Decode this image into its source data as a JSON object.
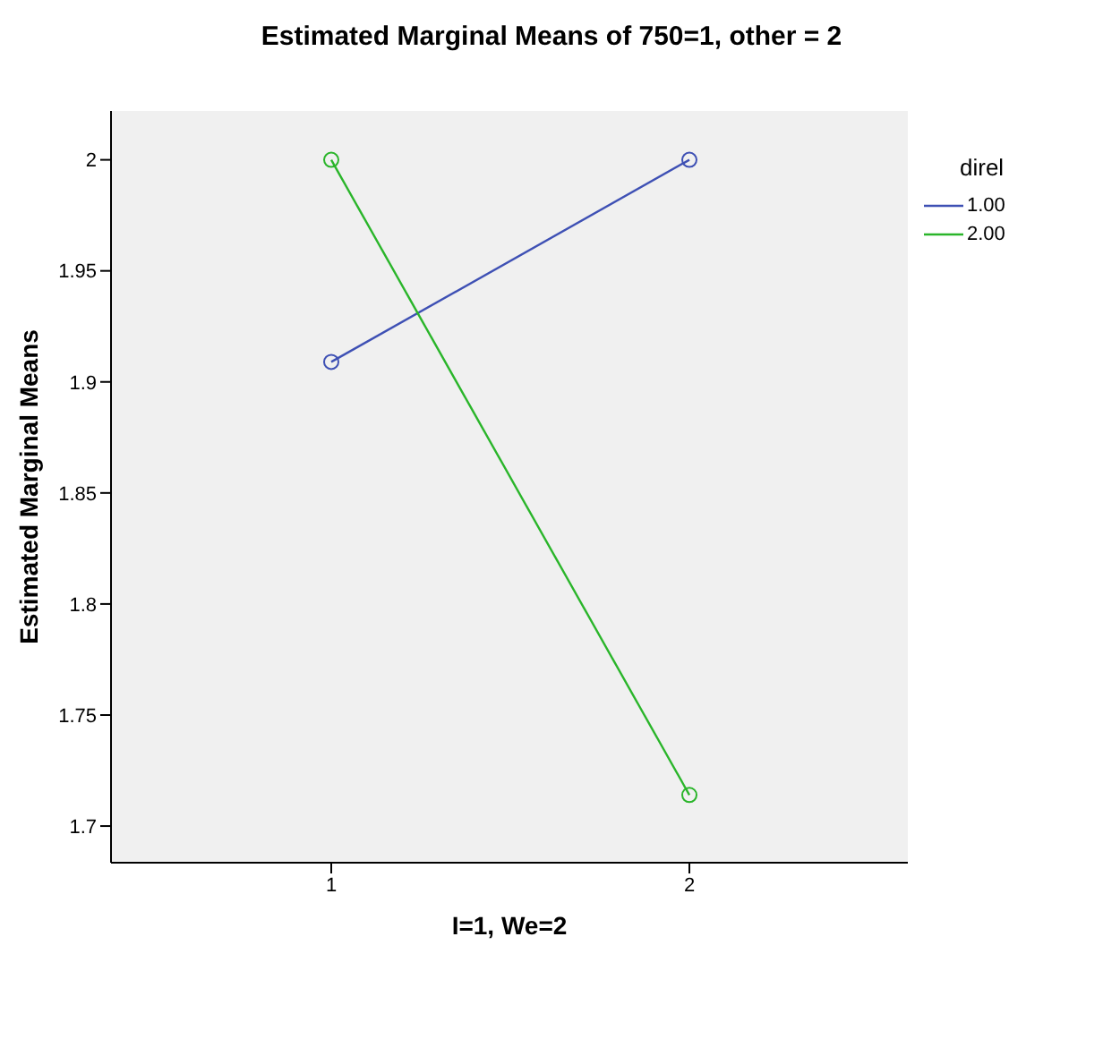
{
  "chart_data": {
    "type": "line",
    "title": "Estimated Marginal Means of 750=1, other = 2",
    "xlabel": "I=1, We=2",
    "ylabel": "Estimated Marginal Means",
    "legend_title": "direl",
    "categories": [
      "1",
      "2"
    ],
    "series": [
      {
        "name": "1.00",
        "color": "#3e50b4",
        "values": [
          1.909,
          2.0
        ]
      },
      {
        "name": "2.00",
        "color": "#2ab52a",
        "values": [
          2.0,
          1.714
        ]
      }
    ],
    "ylim": [
      1.6835,
      2.022
    ],
    "yticks": [
      1.7,
      1.75,
      1.8,
      1.85,
      1.9,
      1.95,
      2
    ],
    "grid": false,
    "legend": "top right",
    "marker": "circle",
    "line_style": "solid"
  }
}
